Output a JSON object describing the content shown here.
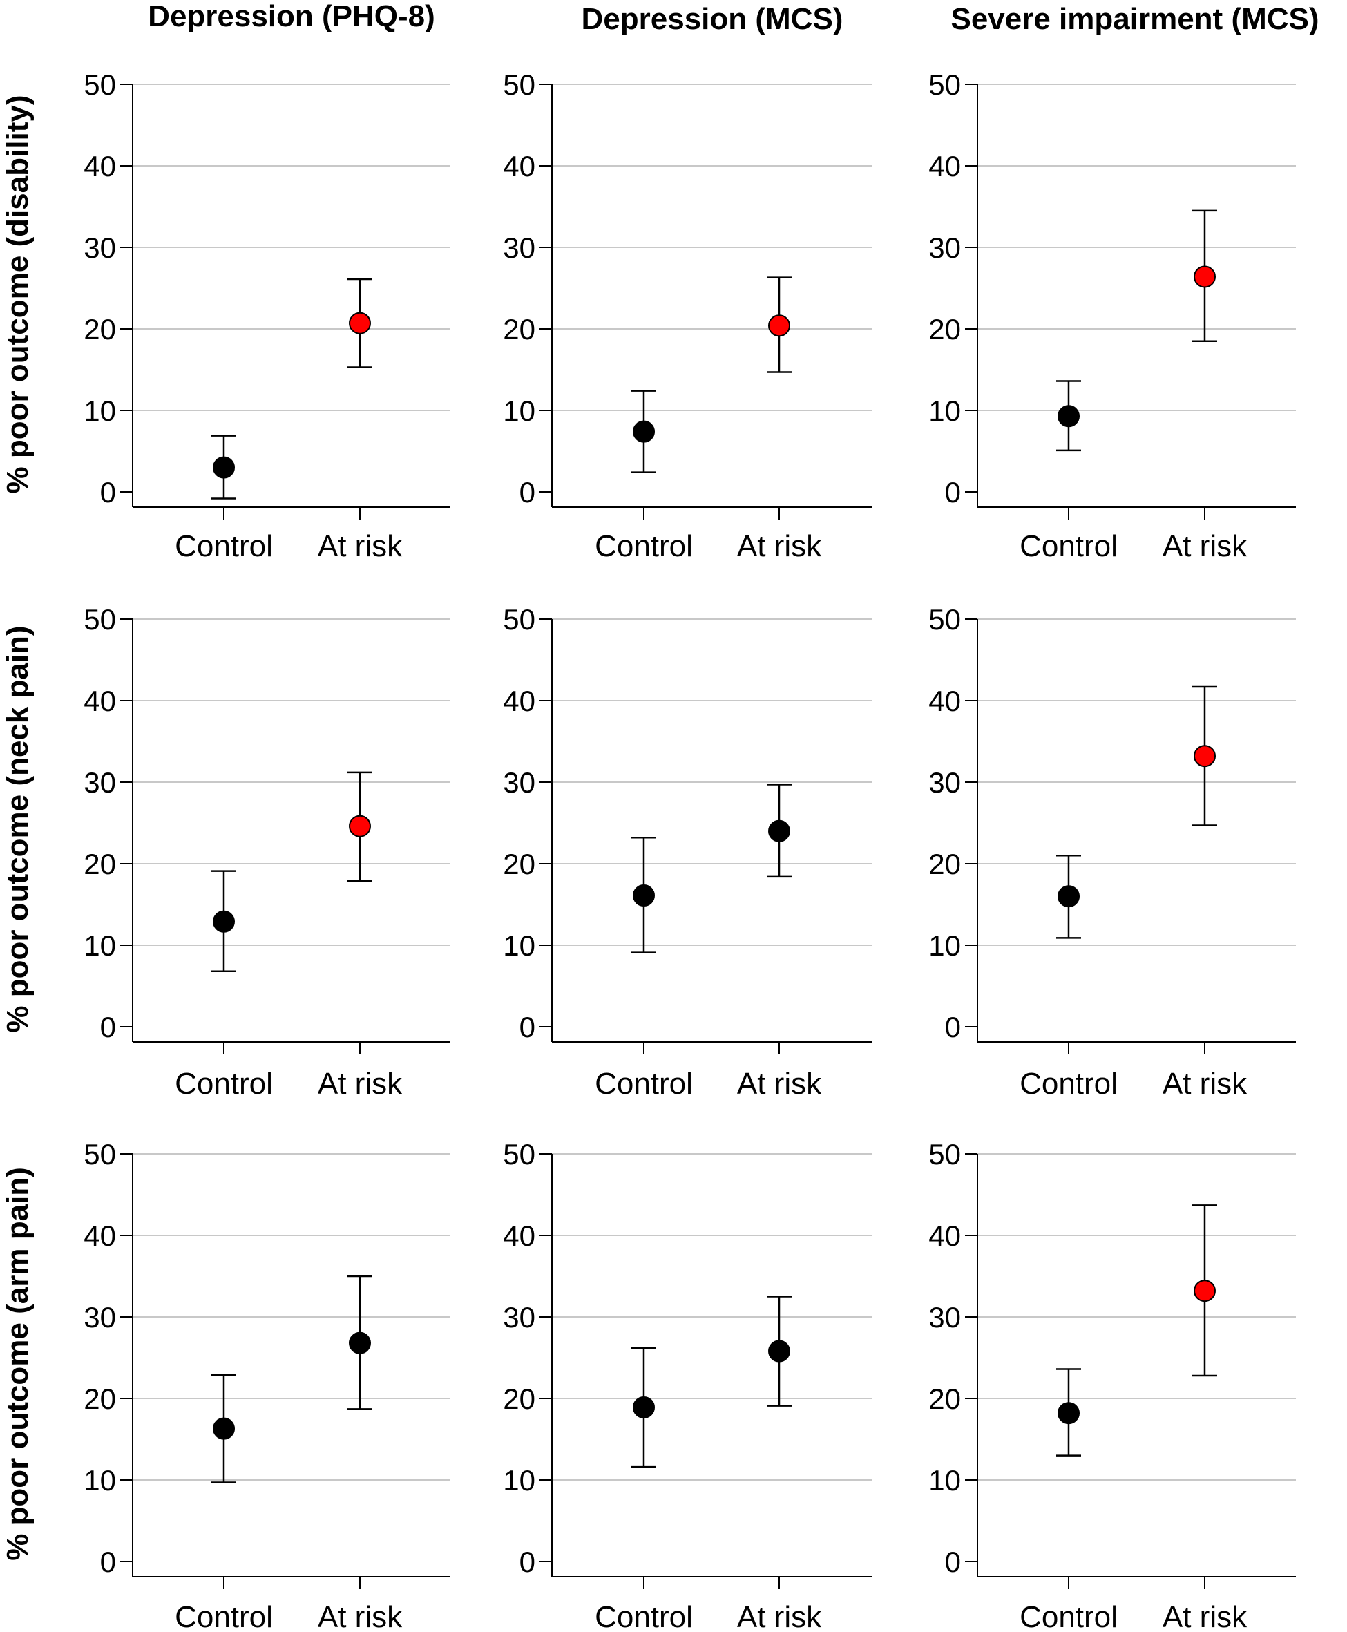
{
  "colors": {
    "significant": "#ff0000",
    "default": "#000000",
    "grid": "#c8c8c8",
    "axis": "#000000"
  },
  "column_titles": [
    "Depression (PHQ-8)",
    "Depression (MCS)",
    "Severe impairment (MCS)"
  ],
  "row_labels": [
    "% poor outcome (disability)",
    "% poor outcome (neck pain)",
    "% poor outcome (arm pain)"
  ],
  "chart_data": [
    {
      "type": "scatter",
      "title": "Depression (PHQ-8)",
      "ylabel": "% poor outcome (disability)",
      "categories": [
        "Control",
        "At risk"
      ],
      "values": [
        3,
        20.7
      ],
      "lower": [
        -0.8,
        15.3
      ],
      "upper": [
        6.9,
        26.1
      ],
      "highlight": [
        false,
        true
      ],
      "ylim": [
        0,
        50
      ],
      "yticks": [
        "0",
        "10",
        "20",
        "30",
        "40",
        "50"
      ],
      "grid": true
    },
    {
      "type": "scatter",
      "title": "Depression (MCS)",
      "ylabel": "% poor outcome (disability)",
      "categories": [
        "Control",
        "At risk"
      ],
      "values": [
        7.4,
        20.4
      ],
      "lower": [
        2.4,
        14.7
      ],
      "upper": [
        12.4,
        26.3
      ],
      "highlight": [
        false,
        true
      ],
      "ylim": [
        0,
        50
      ],
      "yticks": [
        "0",
        "10",
        "20",
        "30",
        "40",
        "50"
      ],
      "grid": true
    },
    {
      "type": "scatter",
      "title": "Severe impairment (MCS)",
      "ylabel": "% poor outcome (disability)",
      "categories": [
        "Control",
        "At risk"
      ],
      "values": [
        9.3,
        26.4
      ],
      "lower": [
        5.1,
        18.5
      ],
      "upper": [
        13.6,
        34.5
      ],
      "highlight": [
        false,
        true
      ],
      "ylim": [
        0,
        50
      ],
      "yticks": [
        "0",
        "10",
        "20",
        "30",
        "40",
        "50"
      ],
      "grid": true
    },
    {
      "type": "scatter",
      "title": "Depression (PHQ-8)",
      "ylabel": "% poor outcome (neck pain)",
      "categories": [
        "Control",
        "At risk"
      ],
      "values": [
        12.9,
        24.6
      ],
      "lower": [
        6.8,
        17.9
      ],
      "upper": [
        19.1,
        31.2
      ],
      "highlight": [
        false,
        true
      ],
      "ylim": [
        0,
        50
      ],
      "yticks": [
        "0",
        "10",
        "20",
        "30",
        "40",
        "50"
      ],
      "grid": true
    },
    {
      "type": "scatter",
      "title": "Depression (MCS)",
      "ylabel": "% poor outcome (neck pain)",
      "categories": [
        "Control",
        "At risk"
      ],
      "values": [
        16.1,
        24
      ],
      "lower": [
        9.1,
        18.4
      ],
      "upper": [
        23.2,
        29.7
      ],
      "highlight": [
        false,
        false
      ],
      "ylim": [
        0,
        50
      ],
      "yticks": [
        "0",
        "10",
        "20",
        "30",
        "40",
        "50"
      ],
      "grid": true
    },
    {
      "type": "scatter",
      "title": "Severe impairment (MCS)",
      "ylabel": "% poor outcome (neck pain)",
      "categories": [
        "Control",
        "At risk"
      ],
      "values": [
        16,
        33.2
      ],
      "lower": [
        10.9,
        24.7
      ],
      "upper": [
        21,
        41.7
      ],
      "highlight": [
        false,
        true
      ],
      "ylim": [
        0,
        50
      ],
      "yticks": [
        "0",
        "10",
        "20",
        "30",
        "40",
        "50"
      ],
      "grid": true
    },
    {
      "type": "scatter",
      "title": "Depression (PHQ-8)",
      "ylabel": "% poor outcome (arm pain)",
      "categories": [
        "Control",
        "At risk"
      ],
      "values": [
        16.3,
        26.8
      ],
      "lower": [
        9.7,
        18.7
      ],
      "upper": [
        22.9,
        35
      ],
      "highlight": [
        false,
        false
      ],
      "ylim": [
        0,
        50
      ],
      "yticks": [
        "0",
        "10",
        "20",
        "30",
        "40",
        "50"
      ],
      "grid": true
    },
    {
      "type": "scatter",
      "title": "Depression (MCS)",
      "ylabel": "% poor outcome (arm pain)",
      "categories": [
        "Control",
        "At risk"
      ],
      "values": [
        18.9,
        25.8
      ],
      "lower": [
        11.6,
        19.1
      ],
      "upper": [
        26.2,
        32.5
      ],
      "highlight": [
        false,
        false
      ],
      "ylim": [
        0,
        50
      ],
      "yticks": [
        "0",
        "10",
        "20",
        "30",
        "40",
        "50"
      ],
      "grid": true
    },
    {
      "type": "scatter",
      "title": "Severe impairment (MCS)",
      "ylabel": "% poor outcome (arm pain)",
      "categories": [
        "Control",
        "At risk"
      ],
      "values": [
        18.2,
        33.2
      ],
      "lower": [
        13,
        22.8
      ],
      "upper": [
        23.6,
        43.7
      ],
      "highlight": [
        false,
        true
      ],
      "ylim": [
        0,
        50
      ],
      "yticks": [
        "0",
        "10",
        "20",
        "30",
        "40",
        "50"
      ],
      "grid": true
    }
  ]
}
